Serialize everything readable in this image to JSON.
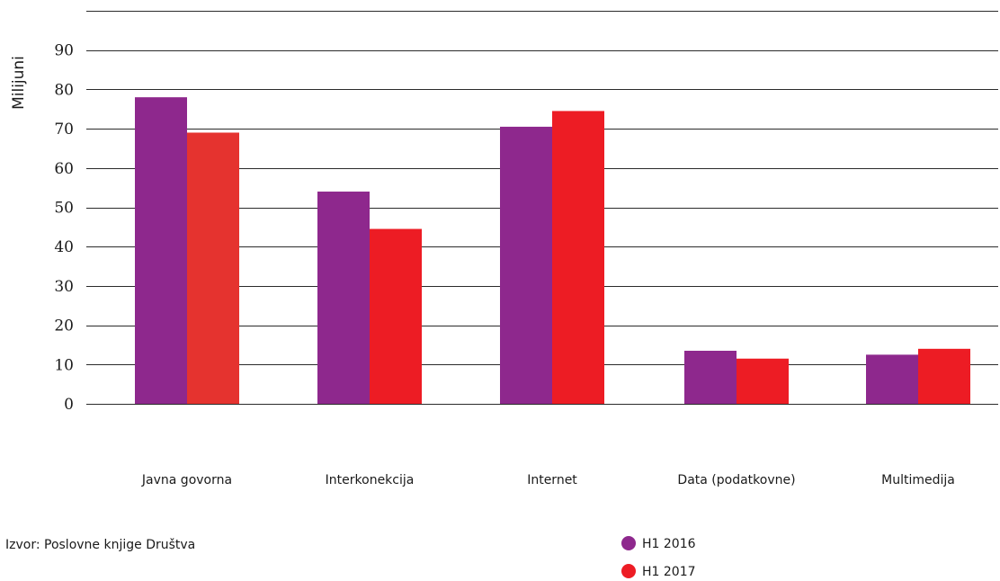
{
  "chart_data": {
    "type": "bar",
    "ylabel": "Milijuni",
    "xlabel": "",
    "ylim": [
      0,
      100
    ],
    "yticks": [
      0,
      10,
      20,
      30,
      40,
      50,
      60,
      70,
      80,
      90
    ],
    "grid": true,
    "legend_position": "bottom-center",
    "categories": [
      "Javna govorna",
      "Interkonekcija",
      "Internet",
      "Data (podatkovne)",
      "Multimedija"
    ],
    "series": [
      {
        "name": "H1 2016",
        "color": "#8e288d",
        "values": [
          78,
          54,
          70.5,
          13.5,
          12.5
        ]
      },
      {
        "name": "H1 2017",
        "color": "#ed1c24",
        "values": [
          69,
          44.5,
          74.5,
          11.5,
          14
        ]
      }
    ],
    "series_colors_per_category": {
      "H1 2017": [
        "#e5332f",
        "#ed1c24",
        "#ed1c24",
        "#ed1c24",
        "#ed1c24"
      ]
    },
    "source": "Izvor: Poslovne knjige Društva"
  }
}
